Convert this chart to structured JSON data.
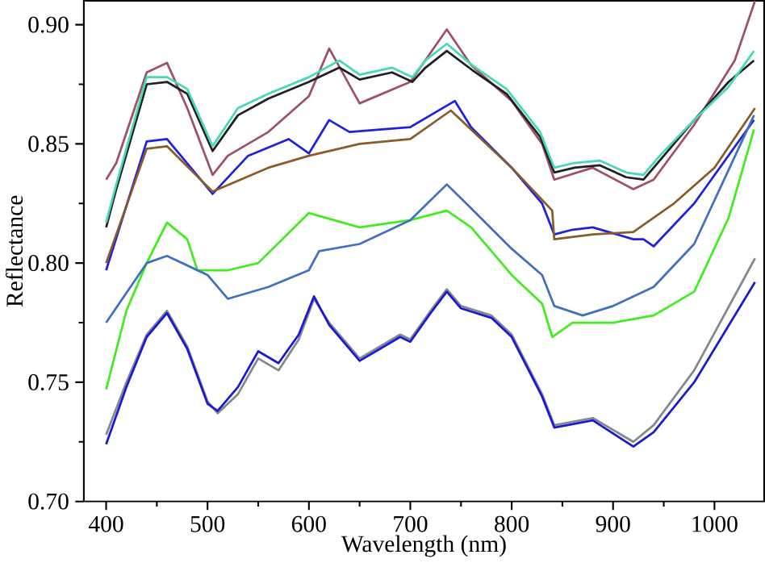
{
  "chart_data": {
    "type": "line",
    "xlabel": "Wavelength (nm)",
    "ylabel": "Reflectance",
    "xlim": [
      378,
      1049
    ],
    "ylim": [
      0.7,
      0.91
    ],
    "xticks": [
      400,
      500,
      600,
      700,
      800,
      900,
      1000
    ],
    "yticks": [
      {
        "value": 0.7,
        "label": "0.70"
      },
      0.75,
      {
        "value": 0.8,
        "label": "0.80"
      },
      0.85,
      {
        "value": 0.9,
        "label": "0.90"
      }
    ],
    "grid": false,
    "marker": "none",
    "line_style": "solid",
    "series": [
      {
        "color": "#a05064",
        "x": [
          400,
          410,
          440,
          460,
          480,
          505,
          520,
          560,
          600,
          620,
          650,
          700,
          736,
          760,
          800,
          830,
          842,
          880,
          920,
          940,
          980,
          1020,
          1040
        ],
        "values": [
          0.835,
          0.842,
          0.88,
          0.884,
          0.865,
          0.837,
          0.845,
          0.855,
          0.87,
          0.89,
          0.867,
          0.876,
          0.898,
          0.883,
          0.868,
          0.85,
          0.835,
          0.84,
          0.831,
          0.835,
          0.858,
          0.885,
          0.91
        ]
      },
      {
        "color": "#202020",
        "x": [
          400,
          410,
          440,
          460,
          480,
          505,
          530,
          560,
          600,
          630,
          650,
          682,
          702,
          715,
          736,
          761,
          795,
          828,
          842,
          862,
          887,
          913,
          930,
          946,
          980,
          1014,
          1039
        ],
        "values": [
          0.815,
          0.831,
          0.875,
          0.876,
          0.871,
          0.847,
          0.862,
          0.869,
          0.876,
          0.882,
          0.877,
          0.88,
          0.876,
          0.882,
          0.889,
          0.881,
          0.871,
          0.853,
          0.838,
          0.84,
          0.841,
          0.836,
          0.835,
          0.843,
          0.86,
          0.876,
          0.885
        ]
      },
      {
        "color": "#48d8b8",
        "x": [
          400,
          410,
          440,
          460,
          480,
          505,
          530,
          560,
          600,
          630,
          650,
          682,
          702,
          715,
          736,
          761,
          795,
          828,
          842,
          862,
          887,
          913,
          930,
          946,
          980,
          1014,
          1039
        ],
        "values": [
          0.817,
          0.833,
          0.878,
          0.878,
          0.873,
          0.849,
          0.865,
          0.871,
          0.878,
          0.885,
          0.879,
          0.882,
          0.878,
          0.885,
          0.892,
          0.883,
          0.873,
          0.855,
          0.84,
          0.842,
          0.843,
          0.838,
          0.837,
          0.845,
          0.86,
          0.874,
          0.889
        ]
      },
      {
        "color": "#2020e0",
        "x": [
          400,
          440,
          460,
          505,
          540,
          580,
          600,
          620,
          640,
          700,
          744,
          760,
          800,
          830,
          842,
          860,
          880,
          920,
          930,
          940,
          980,
          1039
        ],
        "values": [
          0.797,
          0.851,
          0.852,
          0.829,
          0.845,
          0.852,
          0.846,
          0.86,
          0.855,
          0.857,
          0.868,
          0.857,
          0.84,
          0.825,
          0.812,
          0.814,
          0.815,
          0.81,
          0.81,
          0.807,
          0.825,
          0.86
        ]
      },
      {
        "color": "#8b5a2b",
        "x": [
          400,
          440,
          460,
          505,
          560,
          600,
          650,
          700,
          740,
          800,
          840,
          842,
          880,
          920,
          960,
          1000,
          1040
        ],
        "values": [
          0.8,
          0.848,
          0.849,
          0.83,
          0.84,
          0.845,
          0.85,
          0.852,
          0.864,
          0.84,
          0.822,
          0.81,
          0.812,
          0.813,
          0.825,
          0.84,
          0.865
        ]
      },
      {
        "color": "#40ee20",
        "x": [
          400,
          420,
          440,
          460,
          480,
          490,
          520,
          550,
          600,
          650,
          700,
          736,
          760,
          800,
          830,
          840,
          860,
          900,
          940,
          980,
          1014,
          1039
        ],
        "values": [
          0.747,
          0.78,
          0.8,
          0.817,
          0.81,
          0.797,
          0.797,
          0.8,
          0.821,
          0.815,
          0.818,
          0.822,
          0.815,
          0.795,
          0.783,
          0.769,
          0.775,
          0.775,
          0.778,
          0.788,
          0.819,
          0.856
        ]
      },
      {
        "color": "#4070c0",
        "x": [
          400,
          440,
          460,
          500,
          520,
          560,
          600,
          610,
          650,
          700,
          736,
          760,
          800,
          830,
          842,
          870,
          900,
          940,
          980,
          1039
        ],
        "values": [
          0.775,
          0.8,
          0.803,
          0.795,
          0.785,
          0.79,
          0.797,
          0.805,
          0.808,
          0.818,
          0.833,
          0.823,
          0.806,
          0.795,
          0.782,
          0.778,
          0.782,
          0.79,
          0.808,
          0.862
        ]
      },
      {
        "color": "#808890",
        "x": [
          400,
          420,
          440,
          460,
          480,
          500,
          510,
          530,
          550,
          570,
          590,
          605,
          620,
          650,
          670,
          690,
          700,
          720,
          736,
          750,
          780,
          800,
          830,
          842,
          880,
          920,
          940,
          980,
          1040
        ],
        "values": [
          0.728,
          0.75,
          0.77,
          0.78,
          0.765,
          0.742,
          0.737,
          0.745,
          0.76,
          0.755,
          0.768,
          0.785,
          0.775,
          0.76,
          0.765,
          0.77,
          0.768,
          0.78,
          0.789,
          0.782,
          0.778,
          0.77,
          0.745,
          0.732,
          0.735,
          0.725,
          0.732,
          0.755,
          0.802
        ]
      },
      {
        "color": "#1a1ad0",
        "x": [
          400,
          420,
          440,
          460,
          480,
          500,
          510,
          530,
          550,
          570,
          590,
          605,
          620,
          650,
          670,
          690,
          700,
          720,
          736,
          750,
          780,
          800,
          830,
          842,
          880,
          920,
          940,
          980,
          1040
        ],
        "values": [
          0.724,
          0.748,
          0.769,
          0.779,
          0.764,
          0.741,
          0.738,
          0.748,
          0.763,
          0.758,
          0.77,
          0.786,
          0.774,
          0.759,
          0.764,
          0.769,
          0.767,
          0.779,
          0.788,
          0.781,
          0.777,
          0.769,
          0.744,
          0.731,
          0.734,
          0.723,
          0.729,
          0.75,
          0.792
        ]
      }
    ]
  }
}
